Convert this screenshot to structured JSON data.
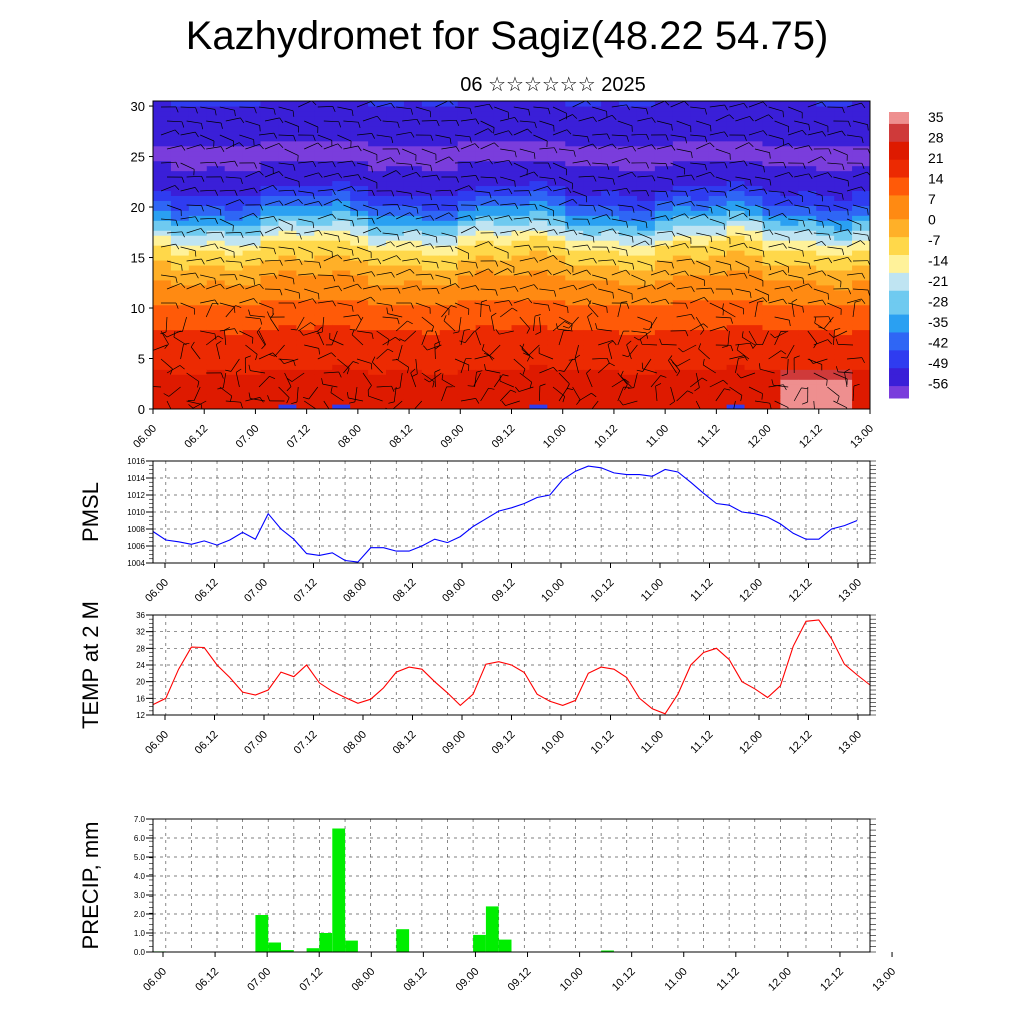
{
  "title": "Kazhydromet for Sagiz(48.22 54.75)",
  "subtitle": "06 ☆☆☆☆☆☆ 2025",
  "chart_data": [
    {
      "type": "heatmap",
      "name": "vertical cross-section with wind barbs",
      "x_tick_labels": [
        "06.00",
        "06.12",
        "07.00",
        "07.12",
        "08.00",
        "08.12",
        "09.00",
        "09.12",
        "10.00",
        "10.12",
        "11.00",
        "11.12",
        "12.00",
        "12.12",
        "13.00"
      ],
      "y_ticks": [
        0,
        5,
        10,
        15,
        20,
        25,
        30
      ],
      "ylim": [
        0,
        30.5
      ],
      "colorbar_labels": [
        "35",
        "28",
        "21",
        "14",
        "7",
        "0",
        "-7",
        "-14",
        "-21",
        "-28",
        "-35",
        "-42",
        "-49",
        "-56"
      ],
      "colorbar_range": [
        -60,
        38
      ],
      "colors": {
        "palette": [
          "#7a3ddc",
          "#3a1fd8",
          "#2f3cf0",
          "#2f66f5",
          "#2aa0f2",
          "#6fcaf0",
          "#bfe4f2",
          "#fff29a",
          "#ffd84a",
          "#ffb028",
          "#ff8a12",
          "#ff5a08",
          "#ec2a02",
          "#de1a00",
          "#cf3a3a",
          "#ee8f8f"
        ]
      },
      "temperature_profile_by_height": [
        [
          0,
          25
        ],
        [
          3,
          23
        ],
        [
          5,
          20
        ],
        [
          8,
          15
        ],
        [
          10,
          10
        ],
        [
          13,
          2
        ],
        [
          16,
          -10
        ],
        [
          18,
          -25
        ],
        [
          20,
          -40
        ],
        [
          22,
          -52
        ],
        [
          25,
          -58
        ],
        [
          28,
          -55
        ],
        [
          30.5,
          -50
        ]
      ]
    },
    {
      "type": "line",
      "ylabel": "PMSL",
      "ylim": [
        1004,
        1016
      ],
      "y_ticks": [
        1004,
        1006,
        1008,
        1010,
        1012,
        1014,
        1016
      ],
      "x_tick_labels": [
        "06.00",
        "06.12",
        "07.00",
        "07.12",
        "08.00",
        "08.12",
        "09.00",
        "09.12",
        "10.00",
        "10.12",
        "11.00",
        "11.12",
        "12.00",
        "12.12",
        "13.00"
      ],
      "x_hours_step": 3,
      "color": "#0000ff",
      "values": [
        1007.7,
        1006.7,
        1006.5,
        1006.2,
        1006.6,
        1006.1,
        1006.7,
        1007.6,
        1006.8,
        1009.8,
        1008.0,
        1006.8,
        1005.1,
        1004.9,
        1005.2,
        1004.3,
        1004.1,
        1005.8,
        1005.8,
        1005.4,
        1005.4,
        1006.0,
        1006.8,
        1006.4,
        1007.1,
        1008.3,
        1009.2,
        1010.1,
        1010.5,
        1011.0,
        1011.7,
        1012.0,
        1013.8,
        1014.8,
        1015.4,
        1015.2,
        1014.6,
        1014.4,
        1014.4,
        1014.2,
        1015.0,
        1014.7,
        1013.5,
        1012.2,
        1011.0,
        1010.8,
        1010.0,
        1009.8,
        1009.4,
        1008.6,
        1007.5,
        1006.8,
        1006.8,
        1008.0,
        1008.4,
        1009.0
      ]
    },
    {
      "type": "line",
      "ylabel": "TEMP at 2 M",
      "ylim": [
        12,
        36
      ],
      "y_ticks": [
        12,
        16,
        20,
        24,
        28,
        32,
        36
      ],
      "x_tick_labels": [
        "06.00",
        "06.12",
        "07.00",
        "07.12",
        "08.00",
        "08.12",
        "09.00",
        "09.12",
        "10.00",
        "10.12",
        "11.00",
        "11.12",
        "12.00",
        "12.12",
        "13.00"
      ],
      "x_hours_step": 3,
      "color": "#ff0000",
      "values": [
        14.5,
        16.0,
        23.0,
        28.3,
        28.2,
        24.0,
        21.0,
        17.5,
        16.8,
        18.0,
        22.3,
        21.2,
        24.0,
        19.7,
        17.7,
        16.2,
        14.8,
        15.8,
        18.5,
        22.3,
        23.5,
        23.0,
        20.0,
        17.3,
        14.3,
        17.0,
        24.2,
        24.8,
        24.0,
        22.2,
        17.0,
        15.3,
        14.3,
        15.5,
        22.0,
        23.5,
        23.0,
        21.0,
        16.0,
        13.5,
        12.3,
        17.0,
        24.0,
        27.0,
        28.0,
        25.3,
        20.0,
        18.3,
        16.2,
        19.0,
        28.5,
        34.5,
        34.8,
        30.3,
        24.2,
        21.6,
        19.2
      ]
    },
    {
      "type": "bar",
      "ylabel": "PRECIP, mm",
      "ylim": [
        0,
        7.0
      ],
      "y_ticks": [
        "0.0",
        "1.0",
        "2.0",
        "3.0",
        "4.0",
        "5.0",
        "6.0",
        "7.0"
      ],
      "x_tick_labels": [
        "06.00",
        "06.12",
        "07.00",
        "07.12",
        "08.00",
        "08.12",
        "09.00",
        "09.12",
        "10.00",
        "10.12",
        "11.00",
        "11.12",
        "12.00",
        "12.12",
        "13.00"
      ],
      "x_hours_step": 3,
      "color": "#00ee00",
      "values": [
        0.03,
        0,
        0,
        0,
        0,
        0,
        0,
        0,
        1.95,
        0.5,
        0.1,
        0,
        0.2,
        1.0,
        6.5,
        0.6,
        0,
        0,
        0,
        1.2,
        0,
        0,
        0,
        0,
        0,
        0.9,
        2.4,
        0.65,
        0,
        0,
        0,
        0,
        0,
        0,
        0,
        0.08,
        0,
        0,
        0,
        0,
        0,
        0,
        0,
        0,
        0,
        0,
        0,
        0,
        0,
        0,
        0,
        0,
        0,
        0,
        0,
        0
      ]
    }
  ]
}
